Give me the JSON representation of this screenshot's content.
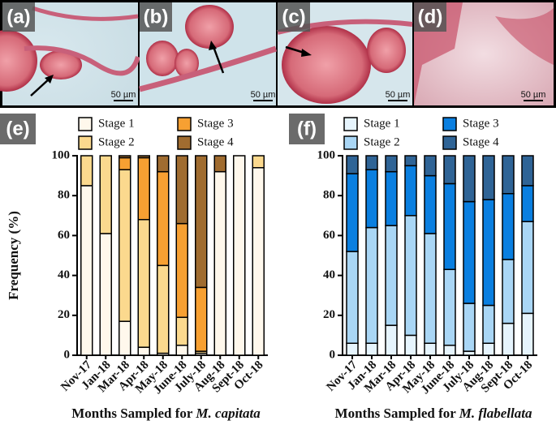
{
  "panels": [
    {
      "label": "(a)",
      "scale": "50 µm"
    },
    {
      "label": "(b)",
      "scale": "50 µm"
    },
    {
      "label": "(c)",
      "scale": "50 µm"
    },
    {
      "label": "(d)",
      "scale": "50 µm"
    }
  ],
  "chart_data": [
    {
      "type": "stacked_bar",
      "panel_label": "(e)",
      "ylabel": "Frequency (%)",
      "xlabel": "Months Sampled for",
      "xlabel_species": "M. capitata",
      "categories": [
        "Nov-17",
        "Jan-18",
        "Mar-18",
        "Apr-18",
        "May-18",
        "June-18",
        "July-18",
        "Aug-18",
        "Sept-18",
        "Oct-18"
      ],
      "ylim": [
        0,
        100
      ],
      "yticks": [
        0,
        20,
        40,
        60,
        80,
        100
      ],
      "series": [
        {
          "name": "Stage 1",
          "color": "#fff8ec",
          "values": [
            85,
            61,
            17,
            4,
            1,
            5,
            1,
            92,
            100,
            94
          ]
        },
        {
          "name": "Stage 2",
          "color": "#fbd98e",
          "values": [
            15,
            39,
            76,
            64,
            44,
            14,
            1,
            0,
            0,
            6
          ]
        },
        {
          "name": "Stage 3",
          "color": "#f7a032",
          "values": [
            0,
            0,
            6,
            31,
            47,
            47,
            32,
            0,
            0,
            0
          ]
        },
        {
          "name": "Stage 4",
          "color": "#a06c30",
          "values": [
            0,
            0,
            1,
            1,
            8,
            34,
            66,
            8,
            0,
            0
          ]
        }
      ]
    },
    {
      "type": "stacked_bar",
      "panel_label": "(f)",
      "xlabel": "Months Sampled for",
      "xlabel_species": "M. flabellata",
      "categories": [
        "Nov-17",
        "Jan-18",
        "Mar-18",
        "Apr-18",
        "May-18",
        "June-18",
        "July-18",
        "Aug-18",
        "Sept-18",
        "Oct-18"
      ],
      "ylim": [
        0,
        100
      ],
      "yticks": [
        0,
        20,
        40,
        60,
        80,
        100
      ],
      "series": [
        {
          "name": "Stage 1",
          "color": "#e6f4fd",
          "values": [
            6,
            6,
            15,
            10,
            6,
            5,
            2,
            6,
            16,
            21
          ]
        },
        {
          "name": "Stage 2",
          "color": "#a9d6f5",
          "values": [
            46,
            58,
            50,
            60,
            55,
            38,
            24,
            19,
            32,
            46
          ]
        },
        {
          "name": "Stage 3",
          "color": "#0a7fe0",
          "values": [
            39,
            29,
            27,
            25,
            29,
            43,
            51,
            53,
            33,
            18
          ]
        },
        {
          "name": "Stage 4",
          "color": "#2f6496",
          "values": [
            9,
            7,
            8,
            5,
            10,
            14,
            23,
            22,
            19,
            15
          ]
        }
      ]
    }
  ]
}
